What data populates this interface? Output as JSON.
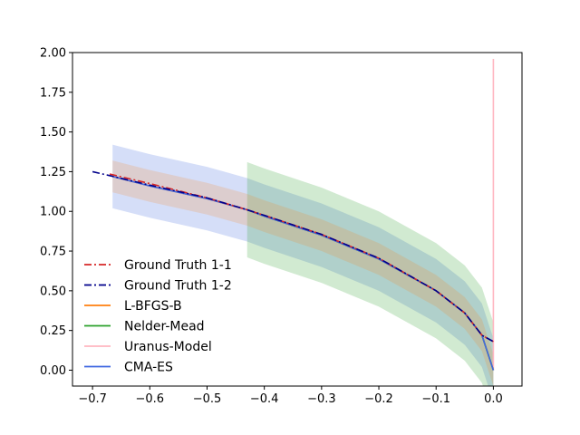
{
  "chart_data": {
    "type": "line",
    "title": "",
    "xlabel": "",
    "ylabel": "",
    "xlim": [
      -0.735,
      0.05
    ],
    "ylim": [
      -0.1,
      2.0
    ],
    "grid": false,
    "legend_position": "lower-left",
    "x_ticks": [
      "−0.7",
      "−0.6",
      "−0.5",
      "−0.4",
      "−0.3",
      "−0.2",
      "−0.1",
      "0.0"
    ],
    "x_tick_values": [
      -0.7,
      -0.6,
      -0.5,
      -0.4,
      -0.3,
      -0.2,
      -0.1,
      0.0
    ],
    "y_ticks": [
      "0.00",
      "0.25",
      "0.50",
      "0.75",
      "1.00",
      "1.25",
      "1.50",
      "1.75",
      "2.00"
    ],
    "y_tick_values": [
      0.0,
      0.25,
      0.5,
      0.75,
      1.0,
      1.25,
      1.5,
      1.75,
      2.0
    ],
    "series": [
      {
        "name": "Ground Truth 1-1",
        "color": "#d62728",
        "style": "dashdot",
        "x": [
          -0.67,
          -0.6,
          -0.5,
          -0.43,
          -0.4,
          -0.3,
          -0.2,
          -0.1,
          -0.05,
          -0.02,
          0.0
        ],
        "y": [
          1.235,
          1.175,
          1.085,
          1.01,
          0.975,
          0.855,
          0.705,
          0.5,
          0.36,
          0.22,
          0.18
        ]
      },
      {
        "name": "Ground Truth 1-2",
        "color": "#00008b",
        "style": "dashdot",
        "x": [
          -0.7,
          -0.67,
          -0.6,
          -0.5,
          -0.43,
          -0.4,
          -0.3,
          -0.2,
          -0.1,
          -0.05,
          -0.02,
          0.0
        ],
        "y": [
          1.25,
          1.225,
          1.165,
          1.085,
          1.01,
          0.975,
          0.855,
          0.705,
          0.5,
          0.36,
          0.22,
          0.18
        ]
      },
      {
        "name": "L-BFGS-B",
        "color": "#ff7f0e",
        "style": "solid",
        "x": [
          -0.665,
          -0.6,
          -0.5,
          -0.43,
          -0.4,
          -0.3,
          -0.2,
          -0.1,
          -0.05,
          -0.02,
          0.0
        ],
        "y": [
          1.22,
          1.16,
          1.08,
          1.01,
          0.97,
          0.85,
          0.7,
          0.5,
          0.36,
          0.22,
          0.0
        ]
      },
      {
        "name": "Nelder-Mead",
        "color": "#2ca02c",
        "style": "solid",
        "x": [
          -0.43,
          -0.4,
          -0.3,
          -0.2,
          -0.1,
          -0.05,
          -0.02,
          0.0
        ],
        "y": [
          1.01,
          0.97,
          0.85,
          0.7,
          0.5,
          0.36,
          0.22,
          0.0
        ]
      },
      {
        "name": "Uranus-Model",
        "color": "#ffb6c1",
        "style": "solid",
        "x": [
          0.0,
          0.0
        ],
        "y": [
          0.0,
          1.96
        ]
      },
      {
        "name": "CMA-ES",
        "color": "#4169e1",
        "style": "solid",
        "x": [
          -0.665,
          -0.6,
          -0.5,
          -0.43,
          -0.4,
          -0.3,
          -0.2,
          -0.1,
          -0.05,
          -0.02,
          0.0
        ],
        "y": [
          1.22,
          1.16,
          1.08,
          1.01,
          0.97,
          0.85,
          0.7,
          0.5,
          0.36,
          0.22,
          0.0
        ]
      }
    ],
    "bands": [
      {
        "color": "#4169e1",
        "opacity": 0.22,
        "x": [
          -0.665,
          -0.6,
          -0.5,
          -0.43,
          -0.4,
          -0.3,
          -0.2,
          -0.1,
          -0.05,
          -0.02,
          0.0
        ],
        "lower": [
          1.02,
          0.96,
          0.88,
          0.81,
          0.77,
          0.65,
          0.5,
          0.3,
          0.16,
          0.02,
          -0.2
        ],
        "upper": [
          1.42,
          1.36,
          1.28,
          1.21,
          1.17,
          1.05,
          0.9,
          0.7,
          0.56,
          0.42,
          0.2
        ]
      },
      {
        "color": "#2ca02c",
        "opacity": 0.22,
        "x": [
          -0.43,
          -0.4,
          -0.3,
          -0.2,
          -0.1,
          -0.05,
          -0.02,
          0.0
        ],
        "lower": [
          0.71,
          0.67,
          0.55,
          0.4,
          0.2,
          0.06,
          -0.08,
          -0.3
        ],
        "upper": [
          1.31,
          1.27,
          1.15,
          1.0,
          0.8,
          0.66,
          0.52,
          0.3
        ]
      },
      {
        "color": "#ff7f0e",
        "opacity": 0.18,
        "x": [
          -0.665,
          -0.6,
          -0.5,
          -0.43,
          -0.4,
          -0.3,
          -0.2,
          -0.1,
          -0.05,
          -0.02,
          0.0
        ],
        "lower": [
          1.12,
          1.06,
          0.98,
          0.91,
          0.87,
          0.75,
          0.6,
          0.4,
          0.26,
          0.12,
          -0.1
        ],
        "upper": [
          1.32,
          1.26,
          1.18,
          1.11,
          1.07,
          0.95,
          0.8,
          0.6,
          0.46,
          0.32,
          0.1
        ]
      }
    ]
  }
}
